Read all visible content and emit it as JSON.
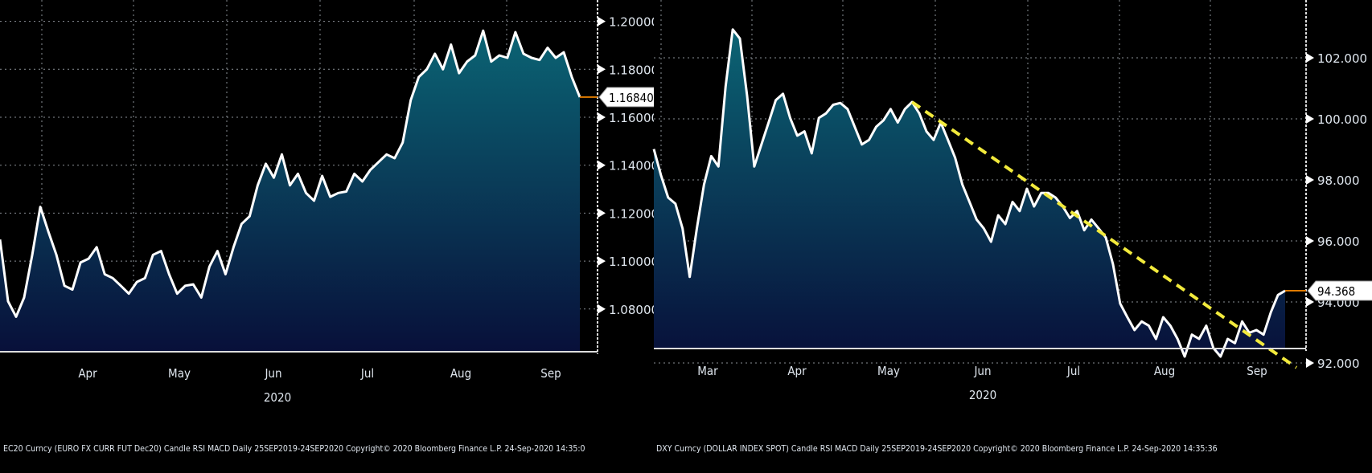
{
  "chart_data": [
    {
      "type": "area",
      "ticker_footer": "EC20 Curncy (EURO FX CURR FUT Dec20) Candle RSI MACD  Daily 25SEP2019-24SEP2020    Copyright© 2020 Bloomberg Finance L.P.    24-Sep-2020 14:35:0",
      "x_month_labels": [
        "Apr",
        "May",
        "Jun",
        "Jul",
        "Aug",
        "Sep"
      ],
      "x_year_label": "2020",
      "y_ticks": [
        "1.20000",
        "1.18000",
        "1.16000",
        "1.14000",
        "1.12000",
        "1.10000",
        "1.08000"
      ],
      "y_tick_values": [
        1.2,
        1.18,
        1.16,
        1.14,
        1.12,
        1.1,
        1.08
      ],
      "last_value_label": "1.16840",
      "last_value": 1.1684,
      "grid": true,
      "colors": {
        "line": "#ffffff",
        "fill_top": "#0b6474",
        "fill_bottom": "#08103a",
        "last_marker": "#e07b00"
      },
      "values": [
        1.109,
        1.0832,
        1.0768,
        1.0848,
        1.1026,
        1.1226,
        1.1123,
        1.1026,
        1.0897,
        1.0881,
        1.0994,
        1.101,
        1.1058,
        1.0945,
        1.0929,
        1.0897,
        1.0864,
        1.0913,
        1.0929,
        1.1026,
        1.1042,
        1.0945,
        1.0864,
        1.0897,
        1.0903,
        1.0848,
        1.0977,
        1.1042,
        1.0945,
        1.1058,
        1.1155,
        1.1187,
        1.1316,
        1.1406,
        1.1348,
        1.1445,
        1.1316,
        1.1364,
        1.1284,
        1.1252,
        1.1355,
        1.1268,
        1.1284,
        1.129,
        1.1364,
        1.1332,
        1.1381,
        1.1413,
        1.1445,
        1.1429,
        1.1494,
        1.1671,
        1.1768,
        1.18,
        1.1865,
        1.18,
        1.1903,
        1.1784,
        1.1832,
        1.1858,
        1.1961,
        1.1832,
        1.1858,
        1.1848,
        1.1955,
        1.1865,
        1.1848,
        1.1839,
        1.189,
        1.1848,
        1.1871,
        1.1768,
        1.1684
      ]
    },
    {
      "type": "area",
      "ticker_footer": "DXY Curncy (DOLLAR INDEX SPOT) Candle RSI MACD  Daily 25SEP2019-24SEP2020  Copyright© 2020 Bloomberg Finance L.P.   24-Sep-2020 14:35:36",
      "x_month_labels": [
        "Mar",
        "Apr",
        "May",
        "Jun",
        "Jul",
        "Aug",
        "Sep"
      ],
      "x_year_label": "2020",
      "y_ticks": [
        "102.000",
        "100.000",
        "98.000",
        "96.000",
        "94.000",
        "92.000"
      ],
      "y_tick_values": [
        102,
        100,
        98,
        96,
        94,
        92
      ],
      "last_value_label": "94.368",
      "last_value": 94.368,
      "grid": true,
      "colors": {
        "line": "#ffffff",
        "fill_top": "#0b6474",
        "fill_bottom": "#08103a",
        "last_marker": "#e07b00",
        "trendline": "#f2ea3c"
      },
      "trendline": {
        "style": "dashed",
        "from_point_index": 36,
        "from_value": 100.55,
        "to_value": 91.85
      },
      "values": [
        99.01,
        98.15,
        97.42,
        97.22,
        96.41,
        94.82,
        96.41,
        97.85,
        98.78,
        98.44,
        101.05,
        102.93,
        102.63,
        100.75,
        98.44,
        99.16,
        99.88,
        100.61,
        100.82,
        100.03,
        99.45,
        99.59,
        98.87,
        100.03,
        100.18,
        100.46,
        100.52,
        100.32,
        99.74,
        99.16,
        99.31,
        99.74,
        99.95,
        100.32,
        99.88,
        100.32,
        100.55,
        100.18,
        99.59,
        99.31,
        99.88,
        99.31,
        98.72,
        97.85,
        97.28,
        96.7,
        96.41,
        95.97,
        96.84,
        96.55,
        97.28,
        96.98,
        97.71,
        97.13,
        97.57,
        97.57,
        97.42,
        97.13,
        96.75,
        96.98,
        96.35,
        96.7,
        96.41,
        96.11,
        95.24,
        93.95,
        93.5,
        93.08,
        93.36,
        93.22,
        92.79,
        93.5,
        93.22,
        92.79,
        92.21,
        92.93,
        92.79,
        93.22,
        92.49,
        92.21,
        92.79,
        92.65,
        93.36,
        92.99,
        93.08,
        92.93,
        93.66,
        94.23,
        94.368
      ]
    }
  ]
}
